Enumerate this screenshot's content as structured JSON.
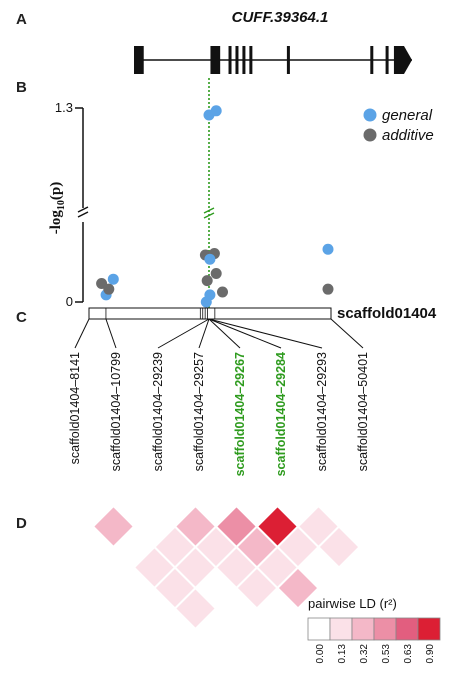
{
  "panels": {
    "a": "A",
    "b": "B",
    "c": "C",
    "d": "D"
  },
  "gene": {
    "name": "CUFF.39364.1",
    "exons": [
      {
        "start": 0.0,
        "end": 0.035
      },
      {
        "start": 0.275,
        "end": 0.31
      },
      {
        "start": 0.34,
        "end": 0.35
      },
      {
        "start": 0.365,
        "end": 0.375
      },
      {
        "start": 0.39,
        "end": 0.4
      },
      {
        "start": 0.415,
        "end": 0.425
      },
      {
        "start": 0.55,
        "end": 0.557
      },
      {
        "start": 0.85,
        "end": 0.857
      },
      {
        "start": 0.905,
        "end": 0.912
      },
      {
        "start": 0.935,
        "end": 1.0,
        "arrow": true
      }
    ]
  },
  "chart_data": {
    "type": "scatter",
    "ylabel": "-log10(p)",
    "yticks": [
      "0",
      "1.3"
    ],
    "axis_break": true,
    "legend_position": "top-right",
    "series": [
      {
        "name": "general",
        "color": "#5ba3e6"
      },
      {
        "name": "additive",
        "color": "#6b6b6b"
      }
    ],
    "points": [
      {
        "snp": "scaffold01404-8141",
        "series": "additive",
        "jx": -0.6,
        "y": 0.13
      },
      {
        "snp": "scaffold01404-8141",
        "series": "general",
        "jx": -0.1,
        "y": 0.05
      },
      {
        "snp": "scaffold01404-8141",
        "series": "additive",
        "jx": 0.2,
        "y": 0.09
      },
      {
        "snp": "scaffold01404-8141",
        "series": "general",
        "jx": 0.7,
        "y": 0.16
      },
      {
        "snp": "scaffold01404-29257",
        "series": "additive",
        "jx": -0.4,
        "y": 0.33
      },
      {
        "snp": "scaffold01404-29257",
        "series": "additive",
        "jx": 0.6,
        "y": 0.34
      },
      {
        "snp": "scaffold01404-29257",
        "series": "general",
        "jx": 0.1,
        "y": 0.3
      },
      {
        "snp": "scaffold01404-29257",
        "series": "additive",
        "jx": -0.2,
        "y": 0.15
      },
      {
        "snp": "scaffold01404-29257",
        "series": "additive",
        "jx": 0.8,
        "y": 0.2
      },
      {
        "snp": "scaffold01404-29257",
        "series": "additive",
        "jx": 1.5,
        "y": 0.07
      },
      {
        "snp": "scaffold01404-29257",
        "series": "general",
        "jx": 0.1,
        "y": 0.05
      },
      {
        "snp": "scaffold01404-29257",
        "series": "general",
        "jx": -0.3,
        "y": 0.0
      },
      {
        "snp": "scaffold01404-29267",
        "series": "general",
        "jx": 0.0,
        "y": 1.25
      },
      {
        "snp": "scaffold01404-29267",
        "series": "general",
        "jx": 0.8,
        "y": 1.28
      },
      {
        "snp": "scaffold01404-50401",
        "series": "general",
        "jx": 0.0,
        "y": 0.37
      },
      {
        "snp": "scaffold01404-50401",
        "series": "additive",
        "jx": 0.0,
        "y": 0.09
      }
    ]
  },
  "scaffold": {
    "name": "scaffold01404",
    "snp_positions": [
      0.0,
      0.07,
      0.46,
      0.47,
      0.48,
      0.49,
      0.52,
      1.0
    ]
  },
  "snps": [
    {
      "label": "scaffold01404–8141",
      "highlight": false
    },
    {
      "label": "scaffold01404–10799",
      "highlight": false
    },
    {
      "label": "scaffold01404–29239",
      "highlight": false
    },
    {
      "label": "scaffold01404–29257",
      "highlight": false
    },
    {
      "label": "scaffold01404–29267",
      "highlight": true
    },
    {
      "label": "scaffold01404–29284",
      "highlight": true
    },
    {
      "label": "scaffold01404–29293",
      "highlight": false
    },
    {
      "label": "scaffold01404–50401",
      "highlight": false
    }
  ],
  "ld": {
    "title": "pairwise LD (r²)",
    "scale_labels": [
      "0.00",
      "0.13",
      "0.32",
      "0.53",
      "0.63",
      "0.90"
    ],
    "scale_colors": [
      "#ffffff",
      "#fbe1e8",
      "#f4b8c8",
      "#ec8fa6",
      "#e25e7f",
      "#dc1f34"
    ],
    "matrix": [
      [
        null,
        0.4,
        0.1,
        0.3,
        0.2,
        0.2,
        0.1,
        0.05
      ],
      [
        null,
        null,
        0.1,
        0.3,
        0.2,
        0.1,
        0.05,
        0.05
      ],
      [
        null,
        null,
        null,
        0.45,
        0.3,
        0.2,
        0.2,
        0.1
      ],
      [
        null,
        null,
        null,
        null,
        0.6,
        0.35,
        0.25,
        0.5
      ],
      [
        null,
        null,
        null,
        null,
        null,
        0.9,
        0.2,
        0.1
      ],
      [
        null,
        null,
        null,
        null,
        null,
        null,
        0.15,
        0.15
      ],
      [
        null,
        null,
        null,
        null,
        null,
        null,
        null,
        0.1
      ],
      [
        null,
        null,
        null,
        null,
        null,
        null,
        null,
        null
      ]
    ]
  }
}
